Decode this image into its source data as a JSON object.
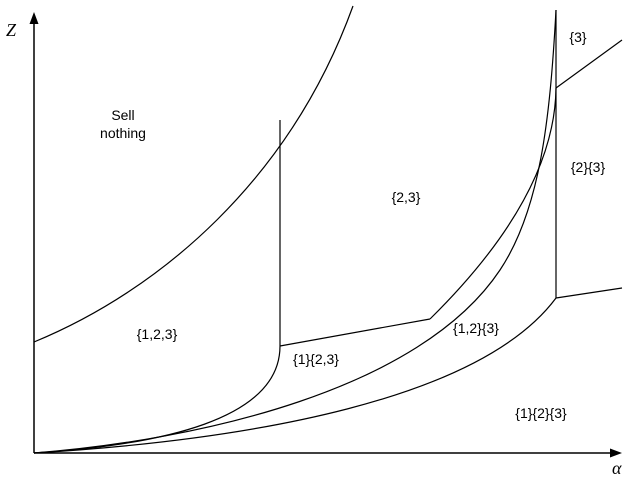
{
  "axes": {
    "y_label": "Z",
    "x_label": "α"
  },
  "regions": {
    "sell_nothing": [
      "Sell",
      "nothing"
    ],
    "r_123": "{1,2,3}",
    "r_1_23": "{1}{2,3}",
    "r_23": "{2,3}",
    "r_12_3": "{1,2}{3}",
    "r_2_3": "{2}{3}",
    "r_3": "{3}",
    "r_1_2_3": "{1}{2}{3}"
  }
}
